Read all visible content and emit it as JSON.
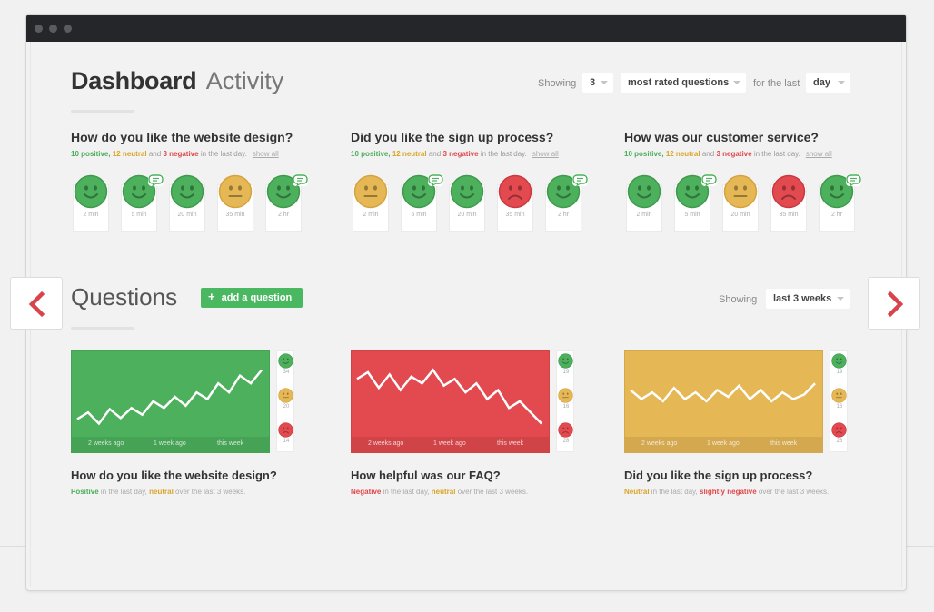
{
  "colors": {
    "positive": "#4cb05c",
    "neutral": "#e5b755",
    "negative": "#e24a4f"
  },
  "header": {
    "title_bold": "Dashboard",
    "title_light": "Activity",
    "showing_label": "Showing",
    "count_value": "3",
    "type_value": "most rated questions",
    "period_label": "for the last",
    "period_value": "day"
  },
  "activity": [
    {
      "title": "How do you like the website design?",
      "summary": {
        "positive": "10 positive,",
        "neutral": "12 neutral",
        "and": "and",
        "negative": "3 negative",
        "tail": "in the last day.",
        "show_all": "show all"
      },
      "faces": [
        {
          "mood": "positive",
          "time": "2 min",
          "comment": false
        },
        {
          "mood": "positive",
          "time": "5 min",
          "comment": true
        },
        {
          "mood": "positive",
          "time": "20 min",
          "comment": false
        },
        {
          "mood": "neutral",
          "time": "35 min",
          "comment": false
        },
        {
          "mood": "positive",
          "time": "2 hr",
          "comment": true
        }
      ]
    },
    {
      "title": "Did you like the sign up process?",
      "summary": {
        "positive": "10 positive,",
        "neutral": "12 neutral",
        "and": "and",
        "negative": "3 negative",
        "tail": "in the last day.",
        "show_all": "show all"
      },
      "faces": [
        {
          "mood": "neutral",
          "time": "2 min",
          "comment": false
        },
        {
          "mood": "positive",
          "time": "5 min",
          "comment": true
        },
        {
          "mood": "positive",
          "time": "20 min",
          "comment": false
        },
        {
          "mood": "negative",
          "time": "35 min",
          "comment": false
        },
        {
          "mood": "positive",
          "time": "2 hr",
          "comment": true
        }
      ]
    },
    {
      "title": "How was our customer service?",
      "summary": {
        "positive": "10 positive,",
        "neutral": "12 neutral",
        "and": "and",
        "negative": "3 negative",
        "tail": "in the last day.",
        "show_all": "show all"
      },
      "faces": [
        {
          "mood": "positive",
          "time": "2 min",
          "comment": false
        },
        {
          "mood": "positive",
          "time": "5 min",
          "comment": true
        },
        {
          "mood": "neutral",
          "time": "20 min",
          "comment": false
        },
        {
          "mood": "negative",
          "time": "35 min",
          "comment": false
        },
        {
          "mood": "positive",
          "time": "2 hr",
          "comment": true
        }
      ]
    }
  ],
  "questions_section": {
    "title": "Questions",
    "add_button": "add a question",
    "showing_label": "Showing",
    "period_value": "last 3 weeks"
  },
  "question_cards": [
    {
      "color": "positive",
      "title": "How do you like the website design?",
      "axis": [
        "2 weeks ago",
        "1 week ago",
        "this week"
      ],
      "counts": {
        "positive": "34",
        "neutral": "20",
        "negative": "14"
      },
      "trend": [
        46,
        40,
        50,
        37,
        45,
        36,
        42,
        30,
        36,
        26,
        34,
        22,
        28,
        14,
        22,
        7,
        14,
        2
      ],
      "summary": [
        {
          "text": "Positive",
          "cls": "pos"
        },
        {
          "text": " in the last day, ",
          "cls": ""
        },
        {
          "text": "neutral",
          "cls": "neu"
        },
        {
          "text": " over the last 3 weeks.",
          "cls": ""
        }
      ]
    },
    {
      "color": "negative",
      "title": "How helpful was our FAQ?",
      "axis": [
        "2 weeks ago",
        "1 week ago",
        "this week"
      ],
      "counts": {
        "positive": "19",
        "neutral": "16",
        "negative": "28"
      },
      "trend": [
        10,
        4,
        18,
        6,
        20,
        8,
        14,
        2,
        16,
        10,
        22,
        14,
        28,
        20,
        36,
        30,
        40,
        50
      ],
      "summary": [
        {
          "text": "Negative",
          "cls": "neg"
        },
        {
          "text": " in the last day, ",
          "cls": ""
        },
        {
          "text": "neutral",
          "cls": "neu"
        },
        {
          "text": " over the last 3 weeks.",
          "cls": ""
        }
      ]
    },
    {
      "color": "neutral",
      "title": "Did you like the sign up process?",
      "axis": [
        "2 weeks ago",
        "1 week ago",
        "this week"
      ],
      "counts": {
        "positive": "19",
        "neutral": "16",
        "negative": "28"
      },
      "trend": [
        20,
        28,
        22,
        30,
        18,
        28,
        22,
        30,
        20,
        26,
        16,
        28,
        20,
        30,
        22,
        28,
        24,
        14
      ],
      "summary": [
        {
          "text": "Neutral",
          "cls": "neu"
        },
        {
          "text": " in the last day, ",
          "cls": ""
        },
        {
          "text": "slightly negative",
          "cls": "neg"
        },
        {
          "text": " over the last 3 weeks.",
          "cls": ""
        }
      ]
    }
  ],
  "icons": {
    "prev": "chevron-left-icon",
    "next": "chevron-right-icon",
    "add": "plus-icon",
    "comment": "comment-bubble-icon"
  }
}
